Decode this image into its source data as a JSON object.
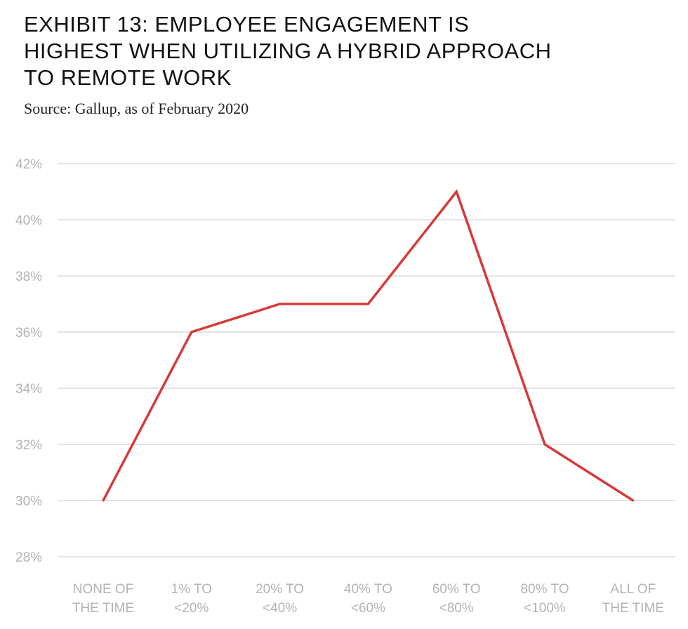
{
  "title_lines": [
    "EXHIBIT 13: EMPLOYEE ENGAGEMENT IS",
    "HIGHEST WHEN UTILIZING A HYBRID APPROACH",
    "TO REMOTE WORK"
  ],
  "subtitle": "Source: Gallup, as of February 2020",
  "colors": {
    "line": "#d63a3a",
    "grid": "#c8c8c8",
    "tick_text": "#b3b3b3"
  },
  "chart_data": {
    "type": "line",
    "title": "EXHIBIT 13: EMPLOYEE ENGAGEMENT IS HIGHEST WHEN UTILIZING A HYBRID APPROACH TO REMOTE WORK",
    "categories": [
      [
        "NONE OF",
        "THE TIME"
      ],
      [
        "1% TO",
        "<20%"
      ],
      [
        "20% TO",
        "<40%"
      ],
      [
        "40% TO",
        "<60%"
      ],
      [
        "60% TO",
        "<80%"
      ],
      [
        "80% TO",
        "<100%"
      ],
      [
        "ALL OF",
        "THE TIME"
      ]
    ],
    "series": [
      {
        "values": [
          30,
          36,
          37,
          37,
          41,
          32,
          30
        ]
      }
    ],
    "ylim": [
      28,
      42
    ],
    "yticks": [
      28,
      30,
      32,
      34,
      36,
      38,
      40,
      42
    ],
    "ytick_labels": [
      "28%",
      "30%",
      "32%",
      "34%",
      "36%",
      "38%",
      "40%",
      "42%"
    ],
    "xlabel": "",
    "ylabel": "",
    "grid": true,
    "legend": "none"
  }
}
